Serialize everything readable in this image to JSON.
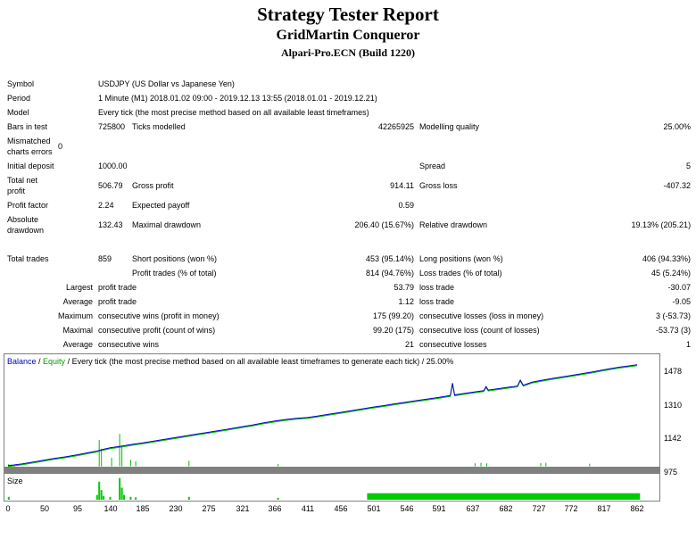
{
  "header": {
    "title": "Strategy Tester Report",
    "expert_name": "GridMartin Conqueror",
    "server": "Alpari-Pro.ECN (Build 1220)"
  },
  "report": {
    "rows": [
      {
        "name": "symbol",
        "cells": [
          {
            "t": "Symbol",
            "span": 2
          },
          {
            "t": "USDJPY (US Dollar vs Japanese Yen)",
            "span": 5
          }
        ]
      },
      {
        "name": "period",
        "cells": [
          {
            "t": "Period",
            "span": 2
          },
          {
            "t": "1 Minute (M1) 2018.01.02 09:00 - 2019.12.13 13:55 (2018.01.01 - 2019.12.21)",
            "span": 5
          }
        ]
      },
      {
        "name": "model",
        "cells": [
          {
            "t": "Model",
            "span": 2
          },
          {
            "t": "Every tick (the most precise method based on all available least timeframes)",
            "span": 5
          }
        ]
      },
      {
        "name": "bars-in-test",
        "cells": [
          {
            "t": "Bars in test",
            "span": 2
          },
          {
            "t": "725800"
          },
          {
            "t": "Ticks modelled"
          },
          {
            "t": "42265925",
            "align": "right"
          },
          {
            "t": "Modelling quality"
          },
          {
            "t": "25.00%",
            "align": "right"
          }
        ]
      },
      {
        "name": "mismatched-charts-errors",
        "cells": [
          {
            "t": "Mismatched charts errors"
          },
          {
            "t": "0"
          },
          {
            "t": "",
            "span": 5
          }
        ]
      },
      {
        "name": "initial-deposit",
        "cells": [
          {
            "t": "Initial deposit"
          },
          {
            "t": ""
          },
          {
            "t": "1000.00"
          },
          {
            "t": ""
          },
          {
            "t": ""
          },
          {
            "t": "Spread"
          },
          {
            "t": "5",
            "align": "right"
          }
        ]
      },
      {
        "name": "total-net-profit",
        "cells": [
          {
            "t": "Total net profit"
          },
          {
            "t": ""
          },
          {
            "t": "506.79"
          },
          {
            "t": "Gross profit"
          },
          {
            "t": "914.11",
            "align": "right"
          },
          {
            "t": "Gross loss"
          },
          {
            "t": "-407.32",
            "align": "right"
          }
        ]
      },
      {
        "name": "profit-factor",
        "cells": [
          {
            "t": "Profit factor",
            "span": 2
          },
          {
            "t": "2.24"
          },
          {
            "t": "Expected payoff"
          },
          {
            "t": "0.59",
            "align": "right"
          },
          {
            "t": ""
          },
          {
            "t": ""
          }
        ]
      },
      {
        "name": "absolute-drawdown",
        "cells": [
          {
            "t": "Absolute drawdown"
          },
          {
            "t": ""
          },
          {
            "t": "132.43"
          },
          {
            "t": "Maximal drawdown"
          },
          {
            "t": "206.40 (15.67%)",
            "align": "right"
          },
          {
            "t": "Relative drawdown"
          },
          {
            "t": "19.13% (205.21)",
            "align": "right"
          }
        ]
      },
      {
        "name": "gap",
        "spacer": true
      },
      {
        "name": "total-trades",
        "cells": [
          {
            "t": "Total trades",
            "span": 2
          },
          {
            "t": "859"
          },
          {
            "t": "Short positions (won %)"
          },
          {
            "t": "453 (95.14%)",
            "align": "right"
          },
          {
            "t": "Long positions (won %)"
          },
          {
            "t": "406 (94.33%)",
            "align": "right"
          }
        ]
      },
      {
        "name": "profit-loss-trades",
        "cells": [
          {
            "t": "",
            "span": 3
          },
          {
            "t": "Profit trades (% of total)"
          },
          {
            "t": "814 (94.76%)",
            "align": "right"
          },
          {
            "t": "Loss trades (% of total)"
          },
          {
            "t": "45 (5.24%)",
            "align": "right"
          }
        ]
      },
      {
        "name": "largest-trade",
        "cells": [
          {
            "t": "Largest",
            "span": 2,
            "align": "right"
          },
          {
            "t": "profit trade",
            "span": 2
          },
          {
            "t": "53.79",
            "align": "right"
          },
          {
            "t": "loss trade"
          },
          {
            "t": "-30.07",
            "align": "right"
          }
        ]
      },
      {
        "name": "average-trade",
        "cells": [
          {
            "t": "Average",
            "span": 2,
            "align": "right"
          },
          {
            "t": "profit trade",
            "span": 2
          },
          {
            "t": "1.12",
            "align": "right"
          },
          {
            "t": "loss trade"
          },
          {
            "t": "-9.05",
            "align": "right"
          }
        ]
      },
      {
        "name": "maximum-consecutive",
        "cells": [
          {
            "t": "Maximum",
            "span": 2,
            "align": "right"
          },
          {
            "t": "consecutive wins (profit in money)",
            "span": 2
          },
          {
            "t": "175 (99.20)",
            "align": "right"
          },
          {
            "t": "consecutive losses (loss in money)"
          },
          {
            "t": "3 (-53.73)",
            "align": "right"
          }
        ]
      },
      {
        "name": "maximal-consecutive",
        "cells": [
          {
            "t": "Maximal",
            "span": 2,
            "align": "right"
          },
          {
            "t": "consecutive profit (count of wins)",
            "span": 2
          },
          {
            "t": "99.20 (175)",
            "align": "right"
          },
          {
            "t": "consecutive loss (count of losses)"
          },
          {
            "t": "-53.73 (3)",
            "align": "right"
          }
        ]
      },
      {
        "name": "average-consecutive",
        "cells": [
          {
            "t": "Average",
            "span": 2,
            "align": "right"
          },
          {
            "t": "consecutive wins",
            "span": 2
          },
          {
            "t": "21",
            "align": "right"
          },
          {
            "t": "consecutive losses"
          },
          {
            "t": "1",
            "align": "right"
          }
        ]
      }
    ]
  },
  "chart": {
    "size_label": "Size",
    "legend_parts": [
      {
        "text": "Balance",
        "color": "#0000C8"
      },
      {
        "text": " / ",
        "color": "#000000"
      },
      {
        "text": "Equity",
        "color": "#00A000"
      },
      {
        "text": " / Every tick (the most precise method based on all available least timeframes to generate each tick) / 25.00%",
        "color": "#000000"
      }
    ]
  },
  "chart_data": {
    "type": "line",
    "title": "Balance / Equity / Every tick (the most precise method based on all available least timeframes to generate each tick) / 25.00%",
    "legend_position": "top-left",
    "grid": false,
    "xlim": [
      0,
      897
    ],
    "ylim": [
      995,
      1555
    ],
    "yticks": [
      1478,
      1310,
      1142,
      975
    ],
    "xticks": [
      0,
      50,
      95,
      140,
      185,
      230,
      275,
      321,
      366,
      411,
      456,
      501,
      546,
      591,
      637,
      682,
      727,
      772,
      817,
      862
    ],
    "series": [
      {
        "name": "Balance",
        "color": "#0000C8",
        "points": [
          [
            0,
            1000
          ],
          [
            20,
            1010
          ],
          [
            40,
            1022
          ],
          [
            60,
            1035
          ],
          [
            80,
            1046
          ],
          [
            95,
            1055
          ],
          [
            110,
            1066
          ],
          [
            120,
            1072
          ],
          [
            130,
            1082
          ],
          [
            140,
            1090
          ],
          [
            155,
            1098
          ],
          [
            170,
            1107
          ],
          [
            185,
            1115
          ],
          [
            200,
            1124
          ],
          [
            215,
            1133
          ],
          [
            230,
            1142
          ],
          [
            245,
            1151
          ],
          [
            260,
            1160
          ],
          [
            275,
            1168
          ],
          [
            290,
            1177
          ],
          [
            305,
            1186
          ],
          [
            320,
            1196
          ],
          [
            335,
            1205
          ],
          [
            350,
            1215
          ],
          [
            365,
            1224
          ],
          [
            380,
            1232
          ],
          [
            395,
            1238
          ],
          [
            410,
            1242
          ],
          [
            425,
            1250
          ],
          [
            440,
            1259
          ],
          [
            455,
            1267
          ],
          [
            470,
            1276
          ],
          [
            485,
            1285
          ],
          [
            500,
            1294
          ],
          [
            515,
            1302
          ],
          [
            530,
            1311
          ],
          [
            545,
            1319
          ],
          [
            560,
            1327
          ],
          [
            575,
            1335
          ],
          [
            590,
            1343
          ],
          [
            600,
            1349
          ],
          [
            606,
            1352
          ],
          [
            609,
            1415
          ],
          [
            612,
            1356
          ],
          [
            625,
            1363
          ],
          [
            640,
            1371
          ],
          [
            652,
            1377
          ],
          [
            655,
            1398
          ],
          [
            658,
            1380
          ],
          [
            670,
            1386
          ],
          [
            685,
            1394
          ],
          [
            698,
            1400
          ],
          [
            702,
            1430
          ],
          [
            706,
            1404
          ],
          [
            712,
            1412
          ],
          [
            718,
            1420
          ],
          [
            730,
            1428
          ],
          [
            742,
            1436
          ],
          [
            754,
            1443
          ],
          [
            766,
            1450
          ],
          [
            778,
            1457
          ],
          [
            790,
            1464
          ],
          [
            802,
            1472
          ],
          [
            814,
            1480
          ],
          [
            826,
            1488
          ],
          [
            838,
            1495
          ],
          [
            850,
            1501
          ],
          [
            862,
            1507
          ]
        ]
      },
      {
        "name": "Equity",
        "color": "#00BE00",
        "spikes": [
          [
            1,
            1008
          ],
          [
            4,
            1006
          ],
          [
            125,
            1130
          ],
          [
            128,
            1085
          ],
          [
            142,
            1040
          ],
          [
            153,
            1160
          ],
          [
            156,
            1095
          ],
          [
            168,
            1030
          ],
          [
            175,
            1022
          ],
          [
            248,
            1025
          ],
          [
            370,
            1008
          ],
          [
            640,
            1012
          ],
          [
            648,
            1015
          ],
          [
            656,
            1012
          ],
          [
            730,
            1013
          ],
          [
            737,
            1015
          ],
          [
            797,
            1010
          ]
        ]
      }
    ],
    "size_chart": {
      "label": "Size",
      "color": "#00CC00",
      "bars": [
        [
          1,
          0.12
        ],
        [
          122,
          0.2
        ],
        [
          125,
          0.75
        ],
        [
          128,
          0.4
        ],
        [
          131,
          0.15
        ],
        [
          140,
          0.12
        ],
        [
          153,
          0.9
        ],
        [
          156,
          0.5
        ],
        [
          159,
          0.2
        ],
        [
          168,
          0.12
        ],
        [
          175,
          0.1
        ],
        [
          248,
          0.12
        ],
        [
          370,
          0.08
        ],
        [
          640,
          0.15
        ],
        [
          650,
          0.12
        ],
        [
          730,
          0.12
        ],
        [
          797,
          0.1
        ]
      ],
      "solid_bar": {
        "from_trade": 492,
        "to_trade": 866,
        "height": 0.27
      }
    }
  }
}
